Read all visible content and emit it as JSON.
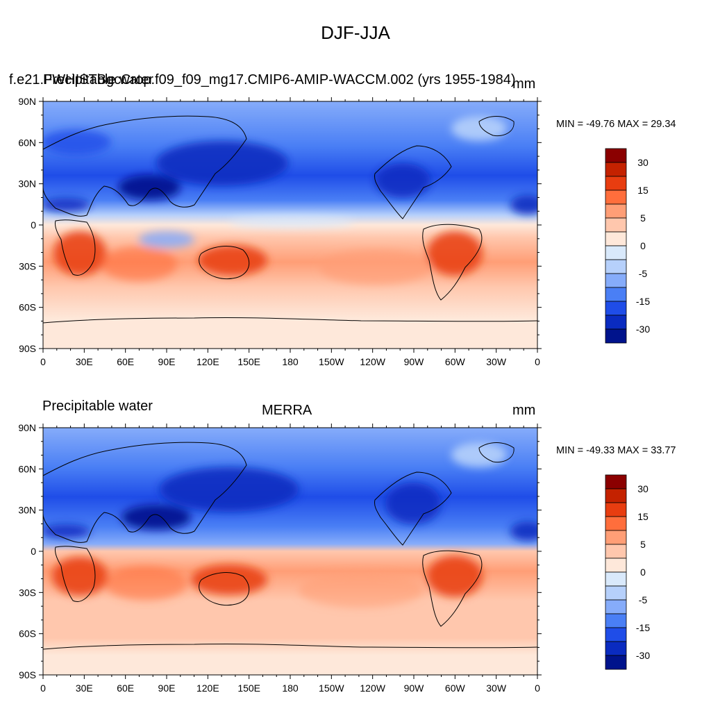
{
  "title": "DJF-JJA",
  "colorbar": {
    "labels": [
      "30",
      "15",
      "5",
      "0",
      "-5",
      "-15",
      "-30"
    ],
    "colors": [
      "#8b0000",
      "#c42200",
      "#e83d10",
      "#ff6e3c",
      "#ff9e76",
      "#ffc7ad",
      "#fee8da",
      "#d9e9fb",
      "#b6d0fb",
      "#86acfa",
      "#4a7ff5",
      "#1f4de8",
      "#0a2bc0",
      "#00138c"
    ]
  },
  "axes": {
    "y_ticks": [
      "90N",
      "60N",
      "30N",
      "0",
      "30S",
      "60S",
      "90S"
    ],
    "x_ticks": [
      "0",
      "30E",
      "60E",
      "90E",
      "120E",
      "150E",
      "180",
      "150W",
      "120W",
      "90W",
      "60W",
      "30W",
      "0"
    ]
  },
  "panels": [
    {
      "left_label": "Precipitable water",
      "center_label": "f.e21.FWHISTBgcCrop.f09_f09_mg17.CMIP6-AMIP-WACCM.002 (yrs 1955-1984)",
      "right_label": "mm",
      "minmax": "MIN = -49.76 MAX =  29.34"
    },
    {
      "left_label": "Precipitable water",
      "center_label": "MERRA",
      "right_label": "mm",
      "minmax": "MIN = -49.33 MAX =  33.77"
    }
  ]
}
